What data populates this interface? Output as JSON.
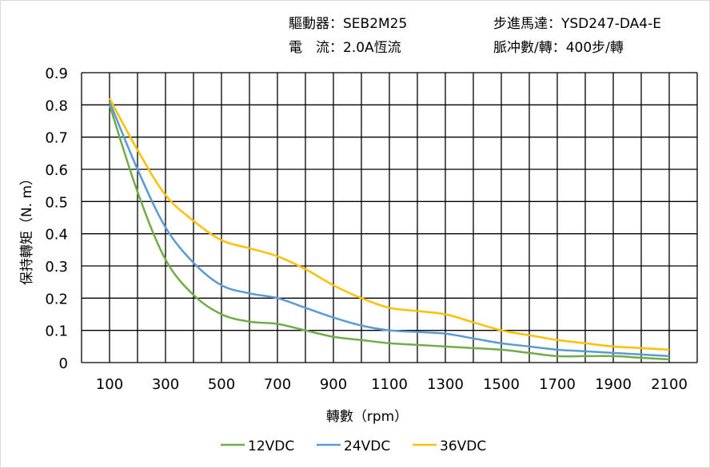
{
  "header": {
    "driver": "驅動器：SEB2M25",
    "motor": "步進馬達：YSD247-DA4-E",
    "current": "電　流：2.0A恆流",
    "pulses": "脈冲數/轉：400步/轉"
  },
  "chart_data": {
    "type": "line",
    "xlabel": "轉數（rpm）",
    "ylabel": "保持轉矩（N. m）",
    "xlim": [
      0,
      2200
    ],
    "ylim": [
      0,
      0.9
    ],
    "grid": true,
    "legend_position": "bottom",
    "x_ticks": [
      100,
      300,
      500,
      700,
      900,
      1100,
      1300,
      1500,
      1700,
      1900,
      2100
    ],
    "y_ticks": [
      "0",
      "0.1",
      "0.2",
      "0.3",
      "0.4",
      "0.5",
      "0.6",
      "0.7",
      "0.8",
      "0.9"
    ],
    "x": [
      100,
      200,
      300,
      400,
      500,
      600,
      700,
      800,
      900,
      1000,
      1100,
      1200,
      1300,
      1400,
      1500,
      1600,
      1700,
      1800,
      1900,
      2000,
      2100
    ],
    "series": [
      {
        "name": "12VDC",
        "color": "#70ad47",
        "values": [
          0.8,
          0.53,
          0.32,
          0.21,
          0.15,
          0.127,
          0.12,
          0.1,
          0.08,
          0.07,
          0.06,
          0.055,
          0.05,
          0.045,
          0.04,
          0.03,
          0.02,
          0.02,
          0.02,
          0.015,
          0.01
        ]
      },
      {
        "name": "24VDC",
        "color": "#5b9bd5",
        "values": [
          0.81,
          0.6,
          0.42,
          0.31,
          0.24,
          0.215,
          0.2,
          0.17,
          0.14,
          0.115,
          0.1,
          0.095,
          0.09,
          0.075,
          0.06,
          0.05,
          0.04,
          0.035,
          0.03,
          0.025,
          0.02
        ]
      },
      {
        "name": "36VDC",
        "color": "#ffc000",
        "values": [
          0.82,
          0.66,
          0.52,
          0.44,
          0.38,
          0.355,
          0.33,
          0.29,
          0.24,
          0.2,
          0.17,
          0.16,
          0.15,
          0.125,
          0.1,
          0.085,
          0.07,
          0.06,
          0.05,
          0.045,
          0.04
        ]
      }
    ]
  }
}
